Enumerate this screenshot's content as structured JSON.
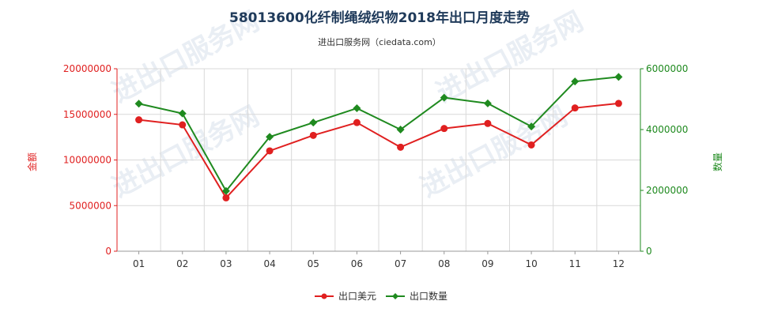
{
  "chart_data": {
    "type": "line",
    "title": "58013600化纤制绳绒织物2018年出口月度走势",
    "subtitle": "进出口服务网（ciedata.com）",
    "watermark": "进出口服务网",
    "categories": [
      "01",
      "02",
      "03",
      "04",
      "05",
      "06",
      "07",
      "08",
      "09",
      "10",
      "11",
      "12"
    ],
    "y_left": {
      "label": "金额",
      "range": [
        0,
        20000000
      ],
      "ticks": [
        "0",
        "5000000",
        "10000000",
        "15000000",
        "20000000"
      ],
      "color": "#e02020"
    },
    "y_right": {
      "label": "数量",
      "range": [
        0,
        6000000
      ],
      "ticks": [
        "0",
        "2000000",
        "4000000",
        "6000000"
      ],
      "color": "#1f8a1f"
    },
    "grid": true,
    "legend_position": "bottom",
    "series": [
      {
        "name": "出口美元",
        "axis": "left",
        "color": "#e02020",
        "marker": "circle",
        "values": [
          14400000,
          13850000,
          5850000,
          11000000,
          12700000,
          14100000,
          11400000,
          13450000,
          14000000,
          11650000,
          15700000,
          16200000
        ]
      },
      {
        "name": "出口数量",
        "axis": "right",
        "color": "#1f8a1f",
        "marker": "diamond",
        "values": [
          4850000,
          4530000,
          1980000,
          3760000,
          4230000,
          4700000,
          4000000,
          5050000,
          4860000,
          4100000,
          5580000,
          5730000
        ]
      }
    ]
  }
}
